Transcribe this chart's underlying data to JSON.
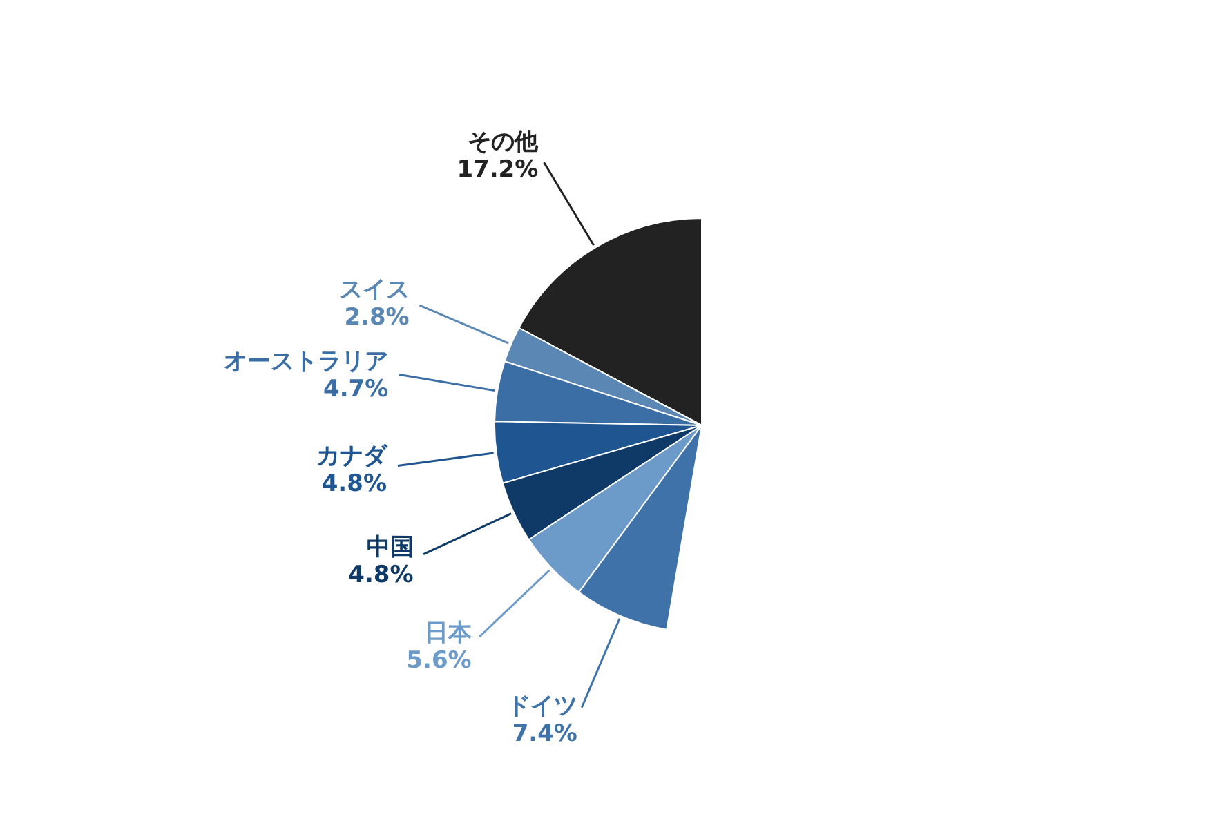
{
  "chart_data": {
    "type": "pie",
    "categories": [
      "その他",
      "スイス",
      "オーストラリア",
      "カナダ",
      "中国",
      "日本",
      "ドイツ"
    ],
    "values": [
      17.2,
      2.8,
      4.7,
      4.8,
      4.8,
      5.6,
      7.4
    ],
    "value_labels": [
      "17.2%",
      "2.8%",
      "4.7%",
      "4.8%",
      "4.8%",
      "5.6%",
      "7.4%"
    ],
    "colors": [
      "#222222",
      "#5b87b5",
      "#3a6ea5",
      "#1f5590",
      "#0f3a68",
      "#6d9bc9",
      "#3e72a8"
    ]
  }
}
